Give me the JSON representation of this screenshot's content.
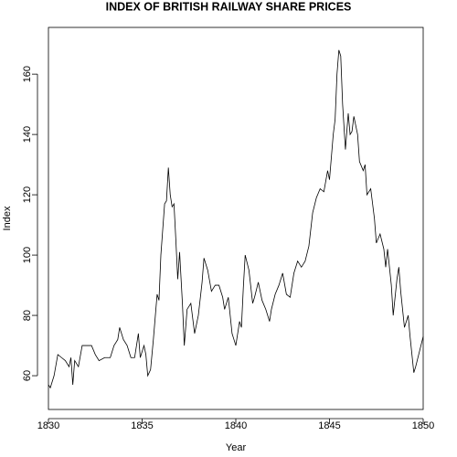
{
  "chart_data": {
    "type": "line",
    "title": "INDEX OF BRITISH RAILWAY SHARE PRICES",
    "x_label": "Year",
    "y_label": "Index",
    "x": [
      1830.0,
      1830.1,
      1830.3,
      1830.5,
      1830.7,
      1830.9,
      1831.1,
      1831.2,
      1831.3,
      1831.4,
      1831.6,
      1831.8,
      1832.0,
      1832.3,
      1832.5,
      1832.7,
      1833.0,
      1833.3,
      1833.5,
      1833.7,
      1833.8,
      1834.0,
      1834.2,
      1834.4,
      1834.6,
      1834.8,
      1834.9,
      1835.1,
      1835.2,
      1835.3,
      1835.45,
      1835.6,
      1835.8,
      1835.9,
      1836.0,
      1836.2,
      1836.3,
      1836.4,
      1836.5,
      1836.6,
      1836.7,
      1836.8,
      1836.9,
      1837.0,
      1837.15,
      1837.25,
      1837.4,
      1837.6,
      1837.8,
      1838.0,
      1838.2,
      1838.3,
      1838.5,
      1838.7,
      1838.9,
      1839.1,
      1839.3,
      1839.4,
      1839.6,
      1839.8,
      1840.0,
      1840.2,
      1840.3,
      1840.4,
      1840.5,
      1840.7,
      1840.9,
      1841.0,
      1841.2,
      1841.4,
      1841.6,
      1841.8,
      1841.9,
      1842.1,
      1842.3,
      1842.5,
      1842.7,
      1842.9,
      1843.1,
      1843.3,
      1843.5,
      1843.7,
      1843.9,
      1844.1,
      1844.3,
      1844.5,
      1844.7,
      1844.9,
      1845.0,
      1845.2,
      1845.3,
      1845.4,
      1845.5,
      1845.6,
      1845.7,
      1845.85,
      1846.0,
      1846.1,
      1846.2,
      1846.3,
      1846.5,
      1846.6,
      1846.8,
      1846.9,
      1847.0,
      1847.2,
      1847.4,
      1847.5,
      1847.7,
      1847.9,
      1848.0,
      1848.1,
      1848.3,
      1848.4,
      1848.6,
      1848.7,
      1848.8,
      1849.0,
      1849.2,
      1849.3,
      1849.5,
      1849.6,
      1849.8,
      1850.0
    ],
    "series": [
      {
        "color": "#000000",
        "values": [
          57,
          56,
          60,
          67,
          66,
          65,
          63,
          66,
          57,
          65,
          63,
          70,
          70,
          70,
          67,
          65,
          66,
          66,
          70,
          72,
          76,
          72,
          70,
          66,
          66,
          74,
          66,
          70,
          67,
          60,
          62,
          72,
          87,
          85,
          100,
          117,
          118,
          129,
          120,
          116,
          117,
          105,
          92,
          101,
          84,
          70,
          82,
          84,
          74,
          80,
          91,
          99,
          95,
          88,
          90,
          90,
          86,
          82,
          86,
          74,
          70,
          78,
          76,
          89,
          100,
          95,
          84,
          86,
          91,
          85,
          82,
          78,
          82,
          87,
          90,
          94,
          87,
          86,
          94,
          98,
          96,
          98,
          103,
          114,
          119,
          122,
          121,
          128,
          125,
          140,
          145,
          160,
          168,
          166,
          150,
          135,
          147,
          140,
          141,
          146,
          140,
          131,
          128,
          130,
          120,
          122,
          112,
          104,
          107,
          102,
          96,
          102,
          90,
          80,
          92,
          96,
          88,
          76,
          80,
          73,
          61,
          63,
          68,
          73
        ]
      }
    ],
    "xlim": [
      1830,
      1850
    ],
    "ylim": [
      48.8,
      175.5
    ],
    "xticks": [
      1830,
      1835,
      1840,
      1845,
      1850
    ],
    "yticks": [
      60,
      80,
      100,
      120,
      140,
      160
    ]
  }
}
